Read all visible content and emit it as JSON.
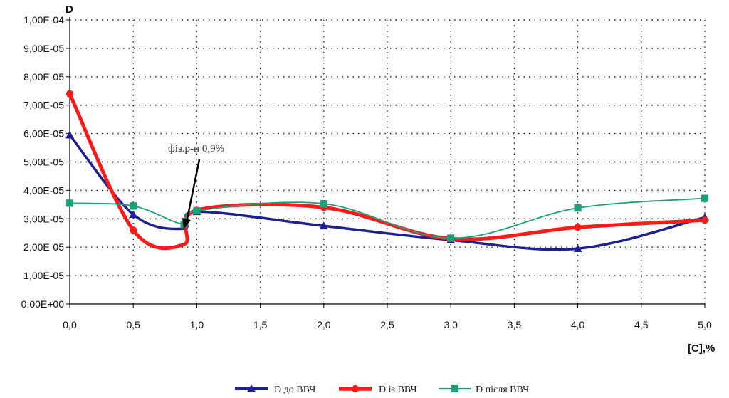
{
  "chart_data": {
    "type": "line",
    "ylabel": "D",
    "xlabel": "[C],%",
    "xlim": [
      0,
      5
    ],
    "ylim": [
      0,
      0.0001
    ],
    "x_ticks": [
      "0,0",
      "0,5",
      "1,0",
      "1,5",
      "2,0",
      "2,5",
      "3,0",
      "3,5",
      "4,0",
      "4,5",
      "5,0"
    ],
    "y_ticks": [
      "0,00E+00",
      "1,00E-05",
      "2,00E-05",
      "3,00E-05",
      "4,00E-05",
      "5,00E-05",
      "6,00E-05",
      "7,00E-05",
      "8,00E-05",
      "9,00E-05",
      "1,00E-04"
    ],
    "grid": true,
    "legend_position": "bottom",
    "annotation": {
      "text": "фіз.р-н  0,9%",
      "x": 0.9,
      "y": 2.75e-05
    },
    "series": [
      {
        "name": "D до ВВЧ",
        "color": "#1f1f8f",
        "marker": "triangle",
        "x": [
          0,
          0.5,
          0.9,
          1.0,
          2.0,
          3.0,
          4.0,
          5.0
        ],
        "y": [
          5.95e-05,
          3.15e-05,
          2.65e-05,
          3.25e-05,
          2.75e-05,
          2.25e-05,
          1.95e-05,
          3.05e-05
        ]
      },
      {
        "name": "D із ВВЧ",
        "color": "#ff1a1a",
        "marker": "circle",
        "x": [
          0,
          0.5,
          0.9,
          1.0,
          2.0,
          3.0,
          4.0,
          5.0
        ],
        "y": [
          7.4e-05,
          2.6e-05,
          2.1e-05,
          3.3e-05,
          3.4e-05,
          2.3e-05,
          2.7e-05,
          2.95e-05
        ]
      },
      {
        "name": "D після ВВЧ",
        "color": "#1aa07a",
        "marker": "square",
        "x": [
          0,
          0.5,
          0.9,
          1.0,
          2.0,
          3.0,
          4.0,
          5.0
        ],
        "y": [
          3.55e-05,
          3.45e-05,
          2.8e-05,
          3.28e-05,
          3.53e-05,
          2.32e-05,
          3.38e-05,
          3.72e-05
        ]
      }
    ]
  }
}
